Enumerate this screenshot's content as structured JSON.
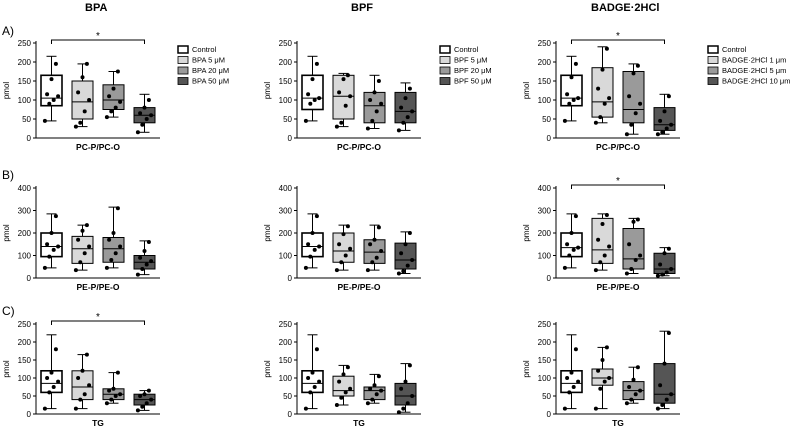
{
  "column_titles": [
    "BPA",
    "BPF",
    "BADGE·2HCl"
  ],
  "row_labels": [
    "A)",
    "B)",
    "C)"
  ],
  "colors": {
    "fills": [
      "#ffffff",
      "#d9d9d9",
      "#9a9a9a",
      "#555555"
    ],
    "axis": "#000000",
    "points": "#000000"
  },
  "legends": [
    [
      "Control",
      "BPA 5 μM",
      "BPA 20 μM",
      "BPA 50 μM"
    ],
    [
      "Control",
      "BPF 5 μM",
      "BPF 20 μM",
      "BPF 50 μM"
    ],
    [
      "Control",
      "BADGE·2HCl 1 μm",
      "BADGE·2HCl 5 μm",
      "BADGE·2HCl 10 μm"
    ]
  ],
  "chart_data": [
    {
      "type": "box",
      "title": "",
      "xlabel": "PC-P/PC-O",
      "ylabel": "pmol",
      "ylim": [
        0,
        250
      ],
      "yticks": [
        0,
        50,
        100,
        150,
        200,
        250
      ],
      "groups": [
        "Control",
        "BPA 5 μM",
        "BPA 20 μM",
        "BPA 50 μM"
      ],
      "boxes": [
        {
          "min": 45,
          "q1": 85,
          "median": 105,
          "q3": 165,
          "max": 215
        },
        {
          "min": 30,
          "q1": 50,
          "median": 95,
          "q3": 150,
          "max": 195
        },
        {
          "min": 55,
          "q1": 75,
          "median": 100,
          "q3": 140,
          "max": 175
        },
        {
          "min": 15,
          "q1": 40,
          "median": 60,
          "q3": 80,
          "max": 115
        }
      ],
      "points": [
        [
          45,
          90,
          100,
          110,
          115,
          155,
          195
        ],
        [
          30,
          40,
          70,
          100,
          120,
          160,
          195
        ],
        [
          55,
          70,
          80,
          95,
          110,
          130,
          175
        ],
        [
          15,
          35,
          50,
          60,
          65,
          80,
          100
        ]
      ],
      "significance": [
        {
          "from": 0,
          "to": 3,
          "label": "*"
        }
      ]
    },
    {
      "type": "box",
      "title": "",
      "xlabel": "PC-P/PC-O",
      "ylabel": "pmol",
      "ylim": [
        0,
        250
      ],
      "yticks": [
        0,
        50,
        100,
        150,
        200,
        250
      ],
      "groups": [
        "Control",
        "BPF 5 μM",
        "BPF 20 μM",
        "BPF 50 μM"
      ],
      "boxes": [
        {
          "min": 45,
          "q1": 75,
          "median": 105,
          "q3": 165,
          "max": 215
        },
        {
          "min": 30,
          "q1": 50,
          "median": 110,
          "q3": 165,
          "max": 170
        },
        {
          "min": 25,
          "q1": 40,
          "median": 85,
          "q3": 120,
          "max": 165
        },
        {
          "min": 20,
          "q1": 40,
          "median": 70,
          "q3": 120,
          "max": 145
        }
      ],
      "points": [
        [
          45,
          90,
          100,
          105,
          115,
          155,
          195
        ],
        [
          30,
          40,
          85,
          110,
          120,
          155,
          165
        ],
        [
          25,
          45,
          70,
          90,
          100,
          120,
          150
        ],
        [
          20,
          40,
          55,
          70,
          80,
          105,
          130
        ]
      ],
      "significance": []
    },
    {
      "type": "box",
      "title": "",
      "xlabel": "PC-P/PC-O",
      "ylabel": "pmol",
      "ylim": [
        0,
        250
      ],
      "yticks": [
        0,
        50,
        100,
        150,
        200,
        250
      ],
      "groups": [
        "Control",
        "BADGE·2HCl 1 μm",
        "BADGE·2HCl 5 μm",
        "BADGE·2HCl 10 μm"
      ],
      "boxes": [
        {
          "min": 45,
          "q1": 85,
          "median": 105,
          "q3": 165,
          "max": 215
        },
        {
          "min": 40,
          "q1": 55,
          "median": 95,
          "q3": 185,
          "max": 240
        },
        {
          "min": 10,
          "q1": 40,
          "median": 75,
          "q3": 175,
          "max": 195
        },
        {
          "min": 10,
          "q1": 20,
          "median": 35,
          "q3": 80,
          "max": 115
        }
      ],
      "points": [
        [
          45,
          90,
          100,
          105,
          115,
          160,
          195
        ],
        [
          40,
          55,
          90,
          105,
          130,
          180,
          235
        ],
        [
          10,
          35,
          65,
          90,
          110,
          170,
          190
        ],
        [
          10,
          15,
          25,
          35,
          45,
          70,
          110
        ]
      ],
      "significance": [
        {
          "from": 0,
          "to": 3,
          "label": "*"
        }
      ]
    },
    {
      "type": "box",
      "title": "",
      "xlabel": "PE-P/PE-O",
      "ylabel": "pmol",
      "ylim": [
        0,
        400
      ],
      "yticks": [
        0,
        100,
        200,
        300,
        400
      ],
      "groups": [
        "Control",
        "BPA 5 μM",
        "BPA 20 μM",
        "BPA 50 μM"
      ],
      "boxes": [
        {
          "min": 45,
          "q1": 95,
          "median": 140,
          "q3": 200,
          "max": 285
        },
        {
          "min": 35,
          "q1": 65,
          "median": 130,
          "q3": 185,
          "max": 235
        },
        {
          "min": 45,
          "q1": 70,
          "median": 130,
          "q3": 180,
          "max": 315
        },
        {
          "min": 15,
          "q1": 40,
          "median": 70,
          "q3": 100,
          "max": 165
        }
      ],
      "points": [
        [
          45,
          95,
          125,
          140,
          150,
          200,
          275
        ],
        [
          35,
          70,
          110,
          140,
          170,
          210,
          235
        ],
        [
          45,
          80,
          110,
          140,
          170,
          200,
          310
        ],
        [
          15,
          40,
          60,
          75,
          90,
          120,
          160
        ]
      ],
      "significance": []
    },
    {
      "type": "box",
      "title": "",
      "xlabel": "PE-P/PE-O",
      "ylabel": "pmol",
      "ylim": [
        0,
        400
      ],
      "yticks": [
        0,
        100,
        200,
        300,
        400
      ],
      "groups": [
        "Control",
        "BPF 5 μM",
        "BPF 20 μM",
        "BPF 50 μM"
      ],
      "boxes": [
        {
          "min": 45,
          "q1": 95,
          "median": 140,
          "q3": 200,
          "max": 285
        },
        {
          "min": 35,
          "q1": 70,
          "median": 120,
          "q3": 200,
          "max": 235
        },
        {
          "min": 35,
          "q1": 65,
          "median": 115,
          "q3": 170,
          "max": 235
        },
        {
          "min": 20,
          "q1": 40,
          "median": 80,
          "q3": 155,
          "max": 205
        }
      ],
      "points": [
        [
          45,
          95,
          125,
          140,
          150,
          200,
          275
        ],
        [
          35,
          70,
          100,
          130,
          150,
          195,
          230
        ],
        [
          35,
          70,
          90,
          120,
          150,
          170,
          225
        ],
        [
          20,
          30,
          55,
          80,
          110,
          150,
          200
        ]
      ],
      "significance": []
    },
    {
      "type": "box",
      "title": "",
      "xlabel": "PE-P/PE-O",
      "ylabel": "pmol",
      "ylim": [
        0,
        400
      ],
      "yticks": [
        0,
        100,
        200,
        300,
        400
      ],
      "groups": [
        "Control",
        "BADGE·2HCl 1 μm",
        "BADGE·2HCl 5 μm",
        "BADGE·2HCl 10 μm"
      ],
      "boxes": [
        {
          "min": 45,
          "q1": 95,
          "median": 135,
          "q3": 200,
          "max": 285
        },
        {
          "min": 35,
          "q1": 65,
          "median": 125,
          "q3": 265,
          "max": 285
        },
        {
          "min": 20,
          "q1": 40,
          "median": 85,
          "q3": 220,
          "max": 265
        },
        {
          "min": 10,
          "q1": 20,
          "median": 40,
          "q3": 110,
          "max": 135
        }
      ],
      "points": [
        [
          45,
          100,
          125,
          135,
          150,
          200,
          275
        ],
        [
          35,
          70,
          100,
          140,
          170,
          240,
          280
        ],
        [
          20,
          40,
          80,
          100,
          150,
          250,
          260
        ],
        [
          10,
          15,
          25,
          40,
          60,
          110,
          130
        ]
      ],
      "significance": [
        {
          "from": 0,
          "to": 3,
          "label": "*"
        }
      ]
    },
    {
      "type": "box",
      "title": "",
      "xlabel": "TG",
      "ylabel": "pmol",
      "ylim": [
        0,
        250
      ],
      "yticks": [
        0,
        50,
        100,
        150,
        200,
        250
      ],
      "groups": [
        "Control",
        "BPA 5 μM",
        "BPA 20 μM",
        "BPA 50 μM"
      ],
      "boxes": [
        {
          "min": 15,
          "q1": 60,
          "median": 85,
          "q3": 120,
          "max": 220
        },
        {
          "min": 15,
          "q1": 40,
          "median": 75,
          "q3": 120,
          "max": 165
        },
        {
          "min": 30,
          "q1": 40,
          "median": 55,
          "q3": 70,
          "max": 115
        },
        {
          "min": 10,
          "q1": 25,
          "median": 40,
          "q3": 55,
          "max": 65
        }
      ],
      "points": [
        [
          15,
          60,
          75,
          90,
          100,
          115,
          180
        ],
        [
          15,
          40,
          55,
          80,
          100,
          120,
          165
        ],
        [
          30,
          40,
          50,
          55,
          65,
          70,
          115
        ],
        [
          10,
          20,
          30,
          40,
          50,
          55,
          65
        ]
      ],
      "significance": [
        {
          "from": 0,
          "to": 3,
          "label": "*"
        }
      ]
    },
    {
      "type": "box",
      "title": "",
      "xlabel": "TG",
      "ylabel": "pmol",
      "ylim": [
        0,
        250
      ],
      "yticks": [
        0,
        50,
        100,
        150,
        200,
        250
      ],
      "groups": [
        "Control",
        "BPF 5 μM",
        "BPF 20 μM",
        "BPF 50 μM"
      ],
      "boxes": [
        {
          "min": 15,
          "q1": 60,
          "median": 85,
          "q3": 120,
          "max": 220
        },
        {
          "min": 25,
          "q1": 50,
          "median": 65,
          "q3": 105,
          "max": 135
        },
        {
          "min": 30,
          "q1": 40,
          "median": 65,
          "q3": 75,
          "max": 110
        },
        {
          "min": 5,
          "q1": 25,
          "median": 50,
          "q3": 85,
          "max": 140
        }
      ],
      "points": [
        [
          15,
          60,
          75,
          90,
          100,
          115,
          180
        ],
        [
          25,
          45,
          60,
          70,
          90,
          110,
          130
        ],
        [
          30,
          40,
          55,
          65,
          70,
          80,
          105
        ],
        [
          5,
          15,
          30,
          50,
          70,
          90,
          135
        ]
      ],
      "significance": []
    },
    {
      "type": "box",
      "title": "",
      "xlabel": "TG",
      "ylabel": "pmol",
      "ylim": [
        0,
        250
      ],
      "yticks": [
        0,
        50,
        100,
        150,
        200,
        250
      ],
      "groups": [
        "Control",
        "BADGE·2HCl 1 μm",
        "BADGE·2HCl 5 μm",
        "BADGE·2HCl 10 μm"
      ],
      "boxes": [
        {
          "min": 15,
          "q1": 60,
          "median": 85,
          "q3": 120,
          "max": 220
        },
        {
          "min": 15,
          "q1": 80,
          "median": 100,
          "q3": 125,
          "max": 185
        },
        {
          "min": 30,
          "q1": 40,
          "median": 65,
          "q3": 90,
          "max": 130
        },
        {
          "min": 15,
          "q1": 30,
          "median": 55,
          "q3": 140,
          "max": 230
        }
      ],
      "points": [
        [
          15,
          60,
          75,
          90,
          100,
          115,
          180
        ],
        [
          15,
          70,
          90,
          100,
          120,
          150,
          185
        ],
        [
          30,
          40,
          55,
          65,
          75,
          95,
          130
        ],
        [
          15,
          25,
          40,
          55,
          80,
          140,
          225
        ]
      ],
      "significance": []
    }
  ]
}
